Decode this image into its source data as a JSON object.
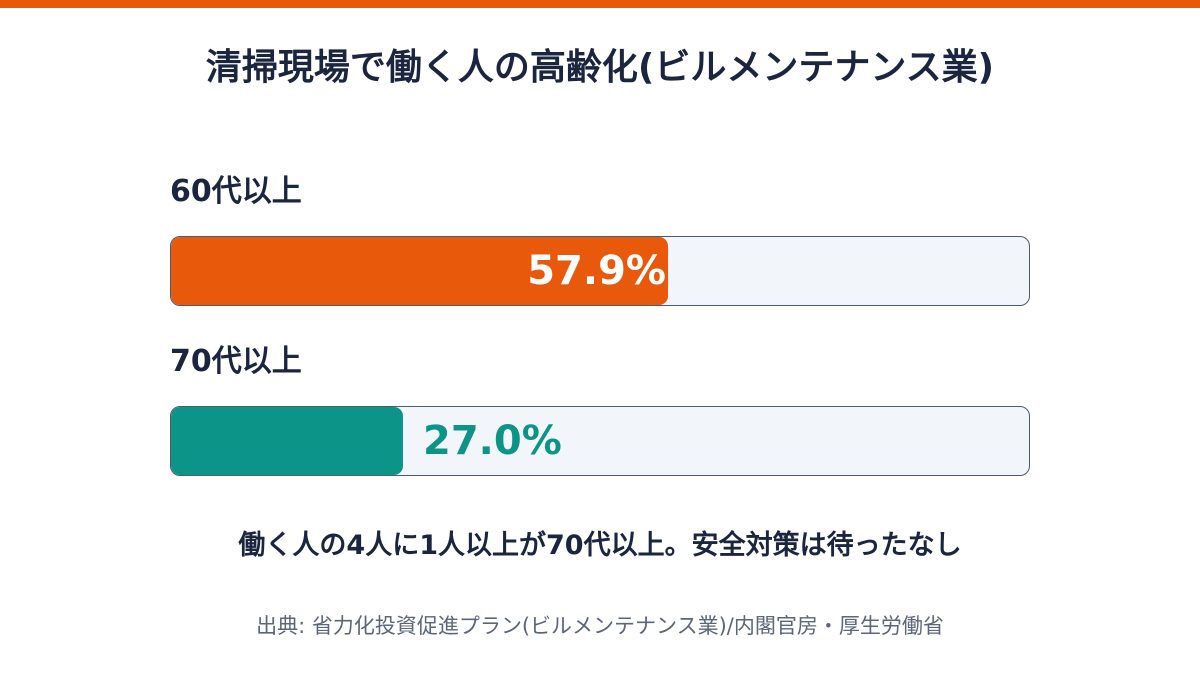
{
  "colors": {
    "accent_orange": "#e8590c",
    "accent_teal": "#0d9488",
    "text_dark": "#1b2540",
    "text_muted": "#5c6678",
    "track_bg": "#f2f5f9"
  },
  "title": "清掃現場で働く人の高齢化(ビルメンテナンス業)",
  "caption": "働く人の4人に1人以上が70代以上。安全対策は待ったなし",
  "source": "出典: 省力化投資促進プラン(ビルメンテナンス業)/内閣官房・厚生労働省",
  "chart_data": {
    "type": "bar",
    "orientation": "horizontal",
    "unit": "%",
    "xlim": [
      0,
      100
    ],
    "categories": [
      "60代以上",
      "70代以上"
    ],
    "values": [
      57.9,
      27.0
    ],
    "value_labels": [
      "57.9%",
      "27.0%"
    ],
    "colors": [
      "#e8590c",
      "#0d9488"
    ],
    "value_label_position": [
      "inside",
      "outside"
    ]
  }
}
